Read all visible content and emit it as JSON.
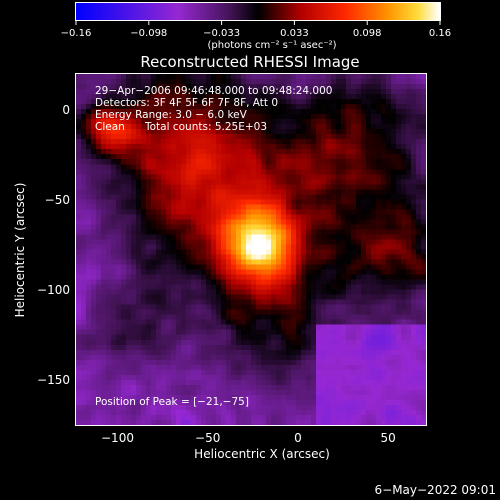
{
  "chart_data": {
    "type": "heatmap",
    "title": "Reconstructed RHESSI Image",
    "xlabel": "Heliocentric X (arcsec)",
    "ylabel": "Heliocentric Y (arcsec)",
    "xlim": [
      -123,
      71
    ],
    "ylim": [
      -175,
      20
    ],
    "x_ticks": [
      {
        "value": -100,
        "label": "−100"
      },
      {
        "value": -50,
        "label": "−50"
      },
      {
        "value": 0,
        "label": "0"
      },
      {
        "value": 50,
        "label": "50"
      }
    ],
    "y_ticks": [
      {
        "value": 0,
        "label": "0"
      },
      {
        "value": -50,
        "label": "−50"
      },
      {
        "value": -100,
        "label": "−100"
      },
      {
        "value": -150,
        "label": "−150"
      }
    ],
    "colorbar": {
      "range": [
        -0.16,
        0.16
      ],
      "tick_labels": [
        "−0.16",
        "−0.098",
        "−0.033",
        "0.033",
        "0.098",
        "0.16"
      ],
      "units_label": "(photons cm⁻² s⁻¹ asec⁻²)"
    },
    "annotations": {
      "time_range": "29−Apr−2006 09:46:48.000 to 09:48:24.000",
      "detectors": "Detectors: 3F 4F 5F 6F 7F 8F, Att 0",
      "energy_range": "Energy Range: 3.0 − 6.0 keV",
      "algorithm": "Clean",
      "total_counts": "Total counts: 5.25E+03",
      "peak_position": "Position of Peak = [−21,−75]"
    },
    "peak": {
      "x": -21,
      "y": -75,
      "value": 0.16
    },
    "colormap": "red-temperature (blue→purple→black→red→orange→yellow→white)"
  },
  "footer": {
    "timestamp": "6−May−2022 09:01"
  }
}
